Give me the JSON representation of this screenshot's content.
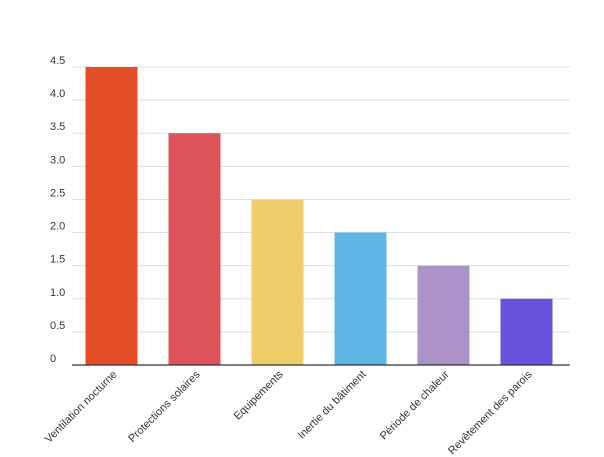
{
  "chart_data": {
    "type": "bar",
    "title": "",
    "xlabel": "",
    "ylabel": "",
    "categories": [
      "Ventilation nocturne",
      "Protections solaires",
      "Equipements",
      "Inertie du bâtiment",
      "Période de chaleur",
      "Revêtement des parois"
    ],
    "values": [
      4.5,
      3.5,
      2.5,
      2.0,
      1.5,
      1.0
    ],
    "colors": [
      "#e34e26",
      "#dc535a",
      "#f0cc6b",
      "#5fb6e6",
      "#ab93c8",
      "#6b52dd"
    ],
    "ylim": [
      0,
      4.5
    ],
    "yticks": [
      "0",
      "0.5",
      "1.0",
      "1.5",
      "2.0",
      "2.5",
      "3.0",
      "3.5",
      "4.0",
      "4.5"
    ],
    "grid": true,
    "legend": "none"
  }
}
